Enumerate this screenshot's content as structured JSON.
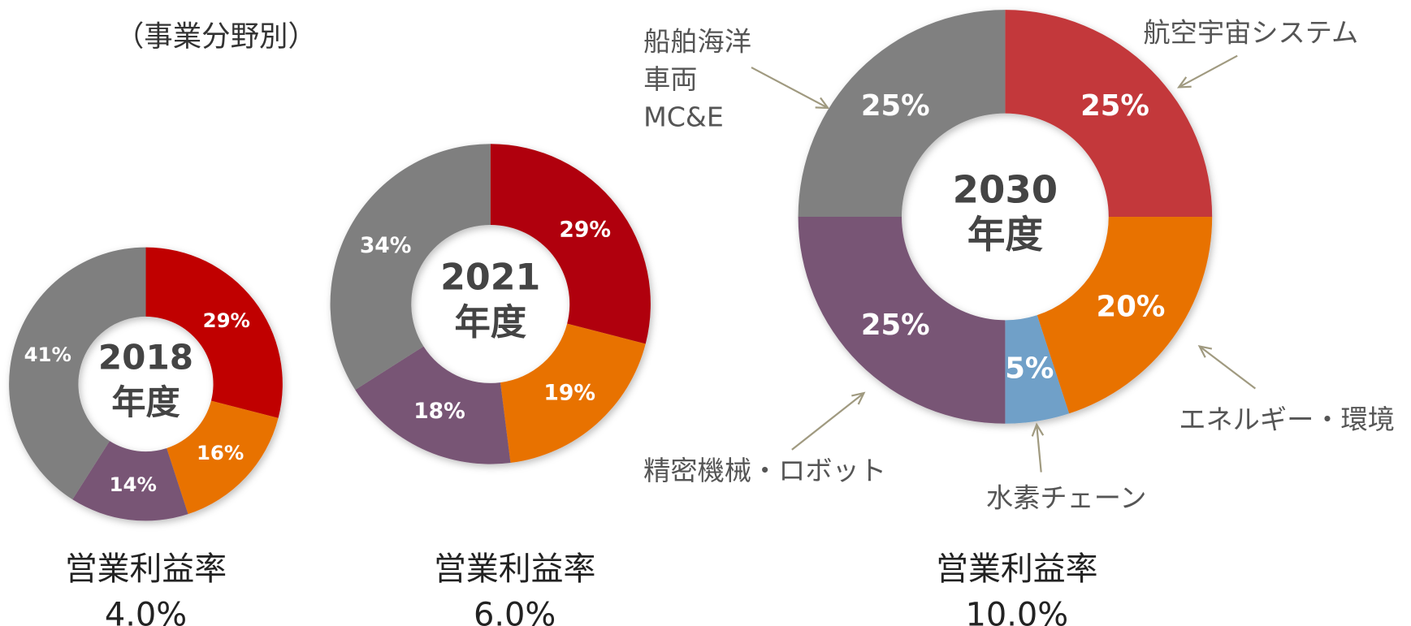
{
  "caption": "（事業分野別）",
  "chart_data": [
    {
      "type": "pie",
      "donut": true,
      "center_label": [
        "2018",
        "年度"
      ],
      "categories": [
        null,
        null,
        null,
        null
      ],
      "values": [
        29,
        16,
        14,
        41
      ],
      "value_labels": [
        "29%",
        "16%",
        "14%",
        "41%"
      ],
      "colors": [
        "#c00000",
        "#e87200",
        "#785474",
        "#7f7f7f"
      ],
      "footer": [
        "営業利益率",
        "4.0%"
      ]
    },
    {
      "type": "pie",
      "donut": true,
      "center_label": [
        "2021",
        "年度"
      ],
      "categories": [
        null,
        null,
        null,
        null
      ],
      "values": [
        29,
        19,
        18,
        34
      ],
      "value_labels": [
        "29%",
        "19%",
        "18%",
        "34%"
      ],
      "colors": [
        "#b00010",
        "#e87200",
        "#785474",
        "#7f7f7f"
      ],
      "footer": [
        "営業利益率",
        "6.0%"
      ]
    },
    {
      "type": "pie",
      "donut": true,
      "center_label": [
        "2030",
        "年度"
      ],
      "categories": [
        [
          "航空宇宙システム"
        ],
        [
          "エネルギー・環境"
        ],
        [
          "水素チェーン"
        ],
        [
          "精密機械・ロボット"
        ],
        [
          "船舶海洋",
          "車両",
          "MC&E"
        ]
      ],
      "values": [
        25,
        20,
        5,
        25,
        25
      ],
      "value_labels": [
        "25%",
        "20%",
        "5%",
        "25%",
        "25%"
      ],
      "colors": [
        "#c3393a",
        "#e87200",
        "#6fa0c8",
        "#785474",
        "#808080"
      ],
      "footer": [
        "営業利益率",
        "10.0%"
      ]
    }
  ]
}
